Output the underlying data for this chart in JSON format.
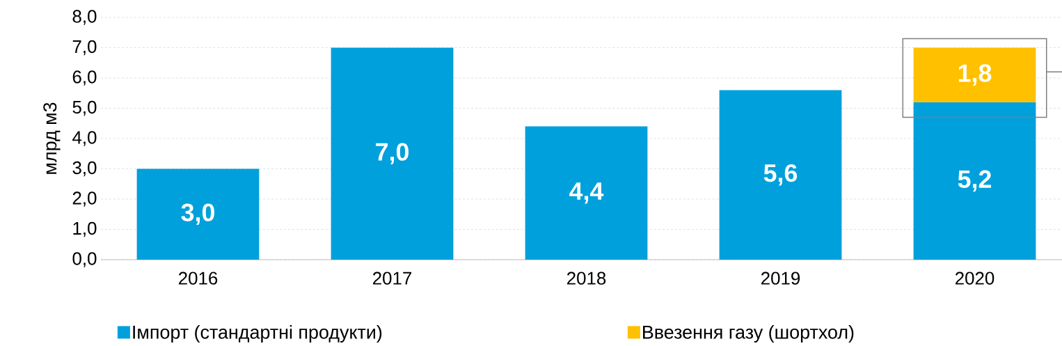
{
  "chart_data": {
    "type": "bar",
    "stacked": true,
    "ylabel": "млрд м3",
    "categories": [
      "2016",
      "2017",
      "2018",
      "2019",
      "2020"
    ],
    "series": [
      {
        "name": "Імпорт (стандартні продукти)",
        "color": "#00a0dc",
        "values": [
          3.0,
          7.0,
          4.4,
          5.6,
          5.2
        ],
        "value_labels": [
          "3,0",
          "7,0",
          "4,4",
          "5,6",
          "5,2"
        ]
      },
      {
        "name": "Ввезення газу (шортхол)",
        "color": "#ffc000",
        "values": [
          null,
          null,
          null,
          null,
          1.8
        ],
        "value_labels": [
          null,
          null,
          null,
          null,
          "1,8"
        ]
      }
    ],
    "ylim": [
      0,
      8
    ],
    "yticks": [
      {
        "value": 0,
        "label": "0,0"
      },
      {
        "value": 1,
        "label": "1,0"
      },
      {
        "value": 2,
        "label": "2,0"
      },
      {
        "value": 3,
        "label": "3,0"
      },
      {
        "value": 4,
        "label": "4,0"
      },
      {
        "value": 5,
        "label": "5,0"
      },
      {
        "value": 6,
        "label": "6,0"
      },
      {
        "value": 7,
        "label": "7,0"
      },
      {
        "value": 8,
        "label": "8,0"
      }
    ],
    "grid": "y",
    "legend": "bottom"
  }
}
